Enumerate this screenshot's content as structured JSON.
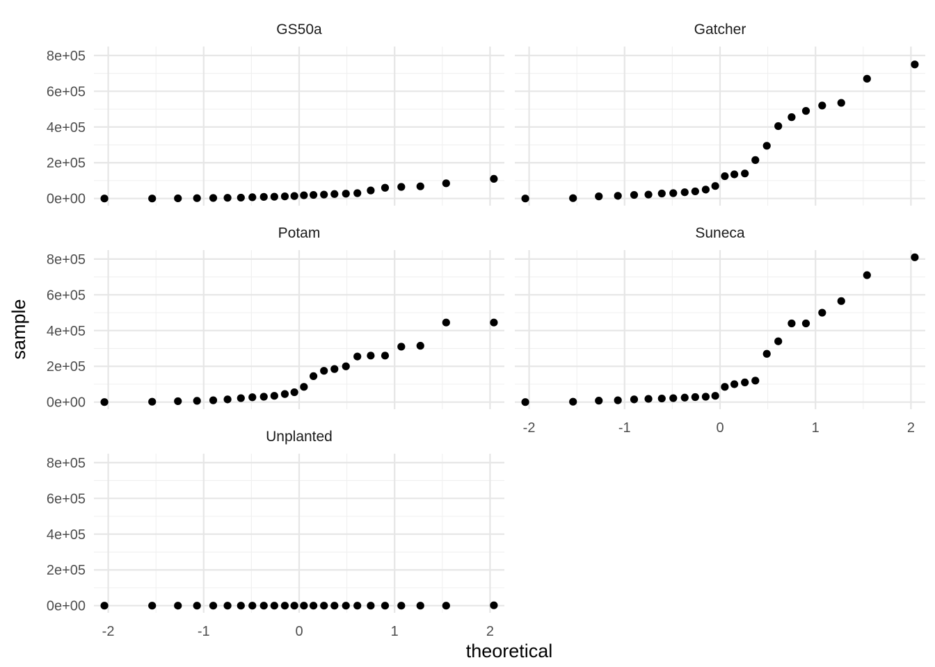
{
  "chart_data": {
    "type": "scatter",
    "xlabel": "theoretical",
    "ylabel": "sample",
    "xlim": [
      -2.15,
      2.15
    ],
    "ylim": [
      -40000,
      850000
    ],
    "x_ticks": [
      -2,
      -1,
      0,
      1,
      2
    ],
    "x_tick_labels": [
      "-2",
      "-1",
      "0",
      "1",
      "2"
    ],
    "y_ticks": [
      0,
      200000,
      400000,
      600000,
      800000
    ],
    "y_tick_labels": [
      "0e+00",
      "2e+05",
      "4e+05",
      "6e+05",
      "8e+05"
    ],
    "grid": true,
    "theoretical": [
      -2.04,
      -1.54,
      -1.27,
      -1.07,
      -0.9,
      -0.75,
      -0.61,
      -0.49,
      -0.37,
      -0.26,
      -0.15,
      -0.05,
      0.05,
      0.15,
      0.26,
      0.37,
      0.49,
      0.61,
      0.75,
      0.9,
      1.07,
      1.27,
      1.54,
      2.04
    ],
    "panels": [
      {
        "name": "GS50a",
        "values": [
          0,
          0,
          1000,
          2000,
          3000,
          4000,
          5000,
          7000,
          9000,
          10000,
          12000,
          14000,
          18000,
          20000,
          22000,
          25000,
          27000,
          30000,
          45000,
          60000,
          65000,
          68000,
          85000,
          110000
        ]
      },
      {
        "name": "Gatcher",
        "values": [
          0,
          2000,
          12000,
          15000,
          20000,
          22000,
          28000,
          30000,
          35000,
          40000,
          50000,
          70000,
          125000,
          135000,
          140000,
          215000,
          295000,
          405000,
          455000,
          490000,
          520000,
          535000,
          670000,
          750000
        ]
      },
      {
        "name": "Potam",
        "values": [
          0,
          2000,
          5000,
          7000,
          10000,
          15000,
          22000,
          27000,
          30000,
          35000,
          45000,
          55000,
          85000,
          145000,
          175000,
          185000,
          200000,
          255000,
          260000,
          260000,
          310000,
          315000,
          445000,
          445000
        ]
      },
      {
        "name": "Suneca",
        "values": [
          0,
          2000,
          8000,
          10000,
          15000,
          18000,
          20000,
          22000,
          25000,
          28000,
          30000,
          35000,
          85000,
          100000,
          110000,
          120000,
          270000,
          340000,
          440000,
          440000,
          500000,
          565000,
          710000,
          810000
        ]
      },
      {
        "name": "Unplanted",
        "values": [
          0,
          0,
          0,
          0,
          0,
          0,
          0,
          0,
          0,
          0,
          0,
          0,
          0,
          0,
          0,
          0,
          0,
          0,
          0,
          0,
          0,
          0,
          0,
          2000
        ]
      }
    ]
  }
}
